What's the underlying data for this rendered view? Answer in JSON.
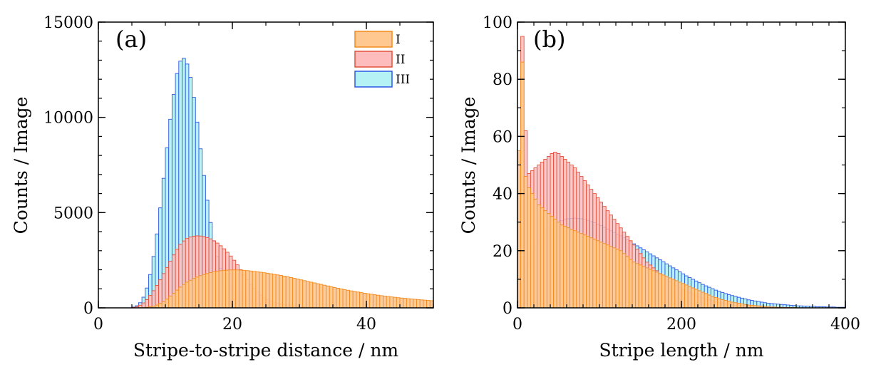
{
  "chart_data": [
    {
      "type": "histogram",
      "panel_label": "(a)",
      "xlabel": "Stripe-to-stripe distance / nm",
      "ylabel": "Counts / Image",
      "xlim": [
        0,
        50
      ],
      "ylim": [
        0,
        15000
      ],
      "xticks": [
        0,
        20,
        40
      ],
      "yticks": [
        0,
        5000,
        10000,
        15000
      ],
      "bin_width": 0.5,
      "bin_start": 0,
      "legend_position": "top-right",
      "series": [
        {
          "name": "I",
          "fill": "#ffc890",
          "stroke": "#f28a1e",
          "values": [
            0,
            0,
            0,
            0,
            0,
            0,
            0,
            0,
            0,
            0,
            0,
            0,
            5,
            15,
            30,
            55,
            95,
            150,
            230,
            330,
            460,
            610,
            770,
            930,
            1090,
            1230,
            1350,
            1450,
            1540,
            1620,
            1690,
            1750,
            1800,
            1850,
            1890,
            1920,
            1950,
            1970,
            1980,
            1990,
            1995,
            1990,
            1980,
            1970,
            1955,
            1935,
            1915,
            1895,
            1870,
            1845,
            1820,
            1790,
            1760,
            1730,
            1700,
            1665,
            1630,
            1590,
            1550,
            1510,
            1470,
            1430,
            1390,
            1350,
            1310,
            1270,
            1230,
            1190,
            1150,
            1110,
            1070,
            1030,
            995,
            960,
            925,
            890,
            860,
            830,
            800,
            770,
            740,
            715,
            690,
            665,
            640,
            615,
            595,
            575,
            555,
            535,
            515,
            500,
            480,
            465,
            450,
            435,
            420,
            405,
            390,
            375
          ]
        },
        {
          "name": "II",
          "fill": "#ffbcbc",
          "stroke": "#e4513a",
          "values": [
            0,
            0,
            0,
            0,
            0,
            0,
            0,
            0,
            0,
            0,
            20,
            60,
            140,
            260,
            430,
            650,
            900,
            1180,
            1480,
            1800,
            2120,
            2450,
            2780,
            3080,
            3330,
            3510,
            3640,
            3720,
            3760,
            3780,
            3770,
            3740,
            3690,
            3620,
            3520,
            3400,
            3260,
            3100,
            2920,
            2720,
            2500,
            2260,
            2000,
            1740,
            1480,
            1240,
            1020,
            830,
            670,
            540,
            440,
            360,
            300,
            250,
            210,
            180,
            150,
            130,
            110,
            95,
            80,
            70,
            60,
            50,
            45,
            40,
            35,
            30,
            26,
            22,
            19,
            16,
            14,
            12,
            10,
            9,
            8,
            7,
            6,
            5,
            5,
            4,
            4,
            3,
            3,
            3,
            2,
            2,
            2,
            2,
            1,
            1,
            1,
            1,
            1,
            1,
            1,
            1,
            1,
            1
          ]
        },
        {
          "name": "III",
          "fill": "#b4f2f6",
          "stroke": "#2d58e0",
          "values": [
            0,
            0,
            0,
            0,
            0,
            0,
            0,
            0,
            0,
            0,
            40,
            110,
            270,
            560,
            1040,
            1750,
            2700,
            3880,
            5250,
            6800,
            8400,
            9900,
            11200,
            12300,
            12950,
            13100,
            12800,
            12100,
            11050,
            9750,
            8350,
            6950,
            5650,
            4480,
            3500,
            2700,
            2080,
            1620,
            1280,
            1040,
            860,
            720,
            610,
            520,
            440,
            370,
            310,
            260,
            220,
            190,
            160,
            135,
            115,
            98,
            84,
            72,
            62,
            54,
            47,
            41,
            36,
            32,
            28,
            25,
            22,
            20,
            18,
            16,
            14,
            12,
            11,
            10,
            9,
            8,
            7,
            6,
            6,
            5,
            5,
            4,
            4,
            3,
            3,
            3,
            2,
            2,
            2,
            2,
            1,
            1,
            1,
            1,
            1,
            1,
            1,
            1,
            1,
            1,
            1,
            1
          ]
        }
      ]
    },
    {
      "type": "histogram",
      "panel_label": "(b)",
      "xlabel": "Stripe length / nm",
      "ylabel": "Counts / Image",
      "xlim": [
        0,
        400
      ],
      "ylim": [
        0,
        100
      ],
      "xticks": [
        0,
        200,
        400
      ],
      "yticks": [
        0,
        20,
        40,
        60,
        80,
        100
      ],
      "bin_width": 4,
      "bin_start": 0,
      "series": [
        {
          "name": "I",
          "values": [
            55,
            86,
            46,
            42,
            40,
            38,
            36,
            35,
            34,
            33,
            32,
            31,
            30,
            29,
            28.5,
            28,
            27.5,
            27,
            26.5,
            26,
            25.5,
            25,
            24.5,
            24,
            23.5,
            23,
            22.5,
            22,
            21.5,
            21,
            20.5,
            20,
            19,
            18,
            17,
            16,
            15.5,
            15,
            14.5,
            14,
            13.5,
            13,
            12.5,
            12,
            11.5,
            11,
            10.5,
            10,
            9.5,
            9,
            8.5,
            8,
            7.5,
            7,
            6.5,
            6,
            5.5,
            5,
            4.5,
            4,
            3.6,
            3.2,
            2.9,
            2.6,
            2.3,
            2.0,
            1.8,
            1.6,
            1.4,
            1.2,
            1.0,
            0.9,
            0.8,
            0.7,
            0.6,
            0.5,
            0.4,
            0.3,
            0.3,
            0.2,
            0.2,
            0.1,
            0.1,
            0.1,
            0.1,
            0,
            0,
            0,
            0,
            0,
            0,
            0,
            0,
            0,
            0,
            0,
            0,
            0,
            0,
            0
          ]
        },
        {
          "name": "II",
          "values": [
            30,
            95,
            62,
            47,
            48,
            49,
            50,
            51,
            52,
            53,
            54,
            54.5,
            54,
            53,
            52,
            51,
            50,
            49,
            47.5,
            46,
            44.5,
            43,
            41.5,
            40,
            38.5,
            37,
            35.5,
            34,
            32.5,
            31,
            29.5,
            28,
            26.5,
            25,
            23.5,
            22,
            20.5,
            19,
            17.5,
            16,
            15,
            14,
            13,
            12,
            11,
            10,
            9.2,
            8.5,
            7.8,
            7.1,
            6.5,
            5.9,
            5.3,
            4.8,
            4.3,
            3.9,
            3.5,
            3.1,
            2.8,
            2.5,
            2.2,
            1.9,
            1.7,
            1.5,
            1.3,
            1.1,
            1.0,
            0.9,
            0.8,
            0.7,
            0.6,
            0.5,
            0.4,
            0.4,
            0.3,
            0.3,
            0.2,
            0.2,
            0.2,
            0.1,
            0.1,
            0.1,
            0.1,
            0,
            0,
            0,
            0,
            0,
            0,
            0,
            0,
            0,
            0,
            0,
            0,
            0,
            0,
            0,
            0,
            0
          ]
        },
        {
          "name": "III",
          "values": [
            5,
            10,
            14,
            17,
            20,
            22,
            24,
            25.5,
            27,
            28,
            29,
            29.5,
            30,
            30.5,
            31,
            31.2,
            31.3,
            31.4,
            31.3,
            31.2,
            31,
            30.6,
            30.2,
            29.8,
            29.3,
            28.8,
            28.2,
            27.6,
            27,
            26.4,
            25.8,
            25.2,
            24.5,
            23.8,
            23.1,
            22.4,
            21.7,
            21,
            20.3,
            19.6,
            18.9,
            18.2,
            17.5,
            16.8,
            16.1,
            15.4,
            14.7,
            14,
            13.3,
            12.6,
            11.9,
            11.2,
            10.6,
            10,
            9.4,
            8.8,
            8.2,
            7.7,
            7.2,
            6.7,
            6.2,
            5.8,
            5.4,
            5.0,
            4.6,
            4.3,
            4.0,
            3.7,
            3.4,
            3.1,
            2.8,
            2.6,
            2.4,
            2.2,
            2.0,
            1.8,
            1.6,
            1.5,
            1.4,
            1.3,
            1.2,
            1.1,
            1.0,
            0.9,
            0.8,
            0.7,
            0.7,
            0.6,
            0.6,
            0.5,
            0.5,
            0.4,
            0.4,
            0.4,
            0.3,
            0.3,
            0.3,
            0.2,
            0.2,
            0.2
          ]
        }
      ]
    }
  ]
}
